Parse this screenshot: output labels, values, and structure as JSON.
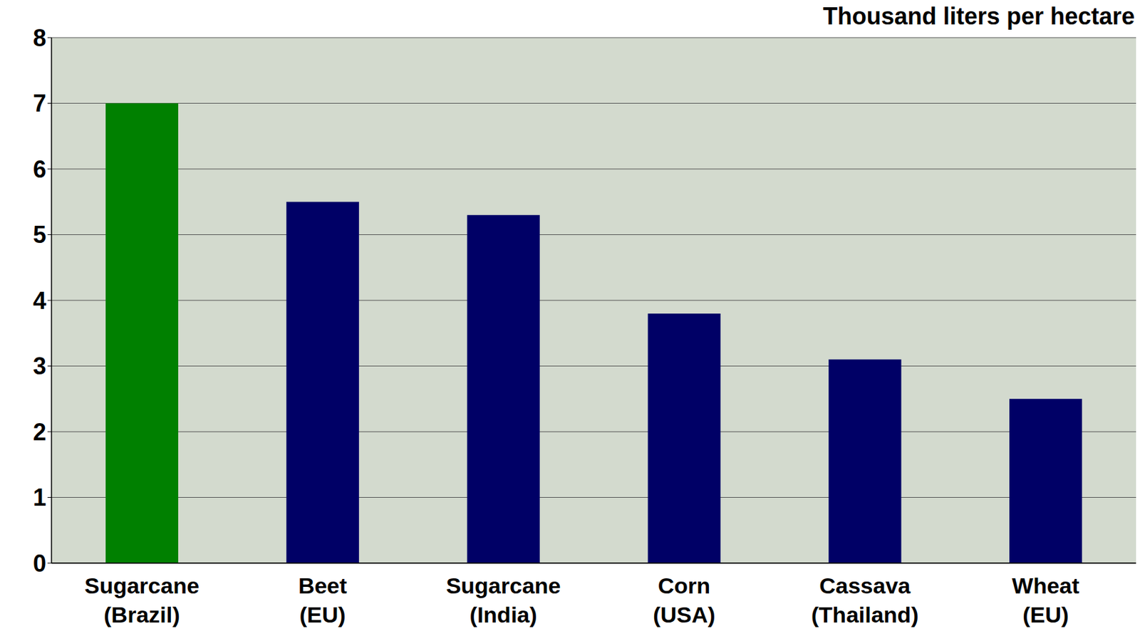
{
  "chart_data": {
    "type": "bar",
    "title": "Thousand liters per hectare",
    "categories": [
      "Sugarcane (Brazil)",
      "Beet (EU)",
      "Sugarcane (India)",
      "Corn (USA)",
      "Cassava (Thailand)",
      "Wheat (EU)"
    ],
    "values": [
      7.0,
      5.5,
      5.3,
      3.8,
      3.1,
      2.5
    ],
    "colors": [
      "#008000",
      "#000066",
      "#000066",
      "#000066",
      "#000066",
      "#000066"
    ],
    "ylim": [
      0,
      8
    ],
    "yticks": [
      0,
      1,
      2,
      3,
      4,
      5,
      6,
      7,
      8
    ],
    "grid": true
  }
}
